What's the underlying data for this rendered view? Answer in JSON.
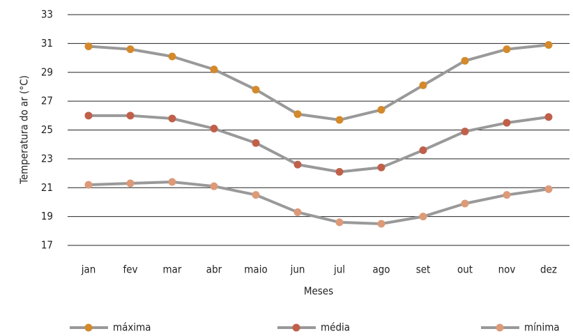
{
  "chart_data": {
    "type": "line",
    "x_label": "Meses",
    "y_label": "Temperatura do ar (°C)",
    "categories": [
      "jan",
      "fev",
      "mar",
      "abr",
      "maio",
      "jun",
      "jul",
      "ago",
      "set",
      "out",
      "nov",
      "dez"
    ],
    "series": [
      {
        "name": "máxima",
        "color": "#d4892a",
        "values": [
          30.8,
          30.6,
          30.1,
          29.2,
          27.8,
          26.1,
          25.7,
          26.4,
          28.1,
          29.8,
          30.6,
          30.9
        ]
      },
      {
        "name": "média",
        "color": "#c0604a",
        "values": [
          26.0,
          26.0,
          25.8,
          25.1,
          24.1,
          22.6,
          22.1,
          22.4,
          23.6,
          24.9,
          25.5,
          25.9
        ]
      },
      {
        "name": "mínima",
        "color": "#dd9a78",
        "values": [
          21.2,
          21.3,
          21.4,
          21.1,
          20.5,
          19.3,
          18.6,
          18.5,
          19.0,
          19.9,
          20.5,
          20.9
        ]
      }
    ],
    "line_color": "#999999",
    "ylim": [
      17,
      33
    ],
    "yticks": [
      17,
      19,
      21,
      23,
      25,
      27,
      29,
      31,
      33
    ],
    "grid": true,
    "legend": "bottom"
  }
}
